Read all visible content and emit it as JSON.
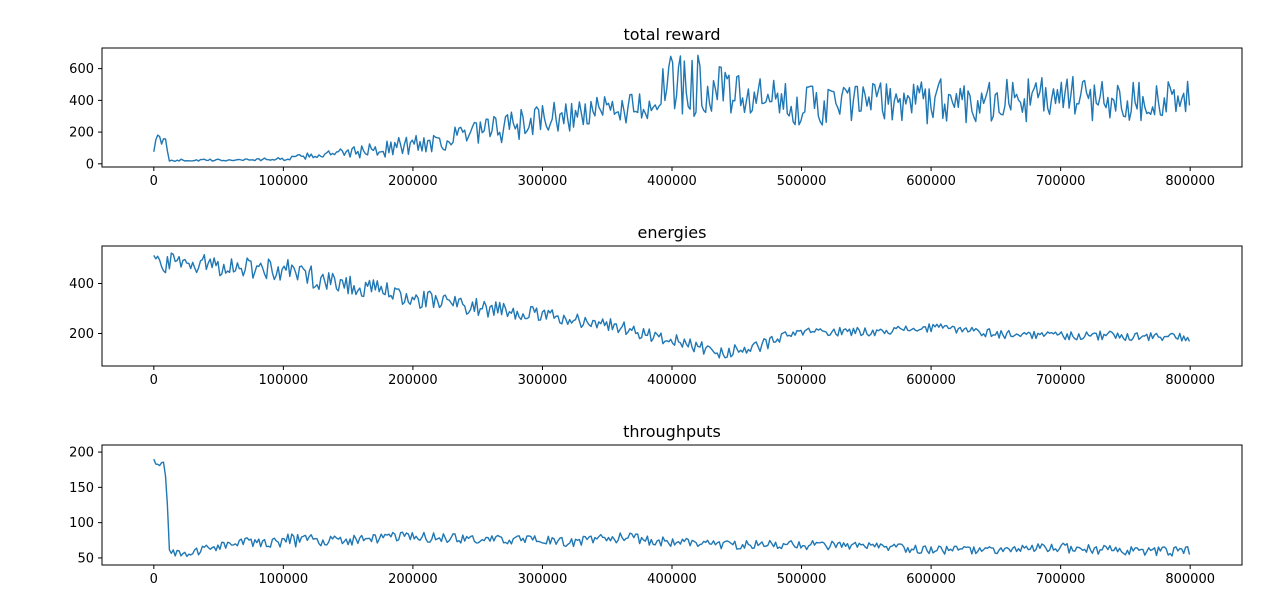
{
  "chart_data": [
    {
      "type": "line",
      "title": "total reward",
      "xlabel": "",
      "ylabel": "",
      "xlim": [
        -40000,
        840000
      ],
      "ylim": [
        -20,
        730
      ],
      "x_ticks": [
        0,
        100000,
        200000,
        300000,
        400000,
        500000,
        600000,
        700000,
        800000
      ],
      "x_tick_labels": [
        "0",
        "100000",
        "200000",
        "300000",
        "400000",
        "500000",
        "600000",
        "700000",
        "800000"
      ],
      "y_ticks": [
        0,
        200,
        400,
        600
      ],
      "y_tick_labels": [
        "0",
        "200",
        "400",
        "600"
      ],
      "grid": false,
      "color": "#1f77b4",
      "series": [
        {
          "x": [
            0,
            5000,
            10000,
            11000,
            50000,
            100000,
            120000,
            150000,
            200000,
            250000,
            300000,
            350000,
            380000,
            400000,
            420000,
            450000,
            500000,
            520000,
            550000,
            600000,
            650000,
            700000,
            750000,
            800000
          ],
          "low": [
            70,
            80,
            60,
            15,
            15,
            20,
            30,
            35,
            45,
            90,
            170,
            230,
            260,
            290,
            290,
            280,
            240,
            230,
            250,
            250,
            250,
            255,
            260,
            260
          ],
          "high": [
            180,
            190,
            170,
            30,
            30,
            40,
            70,
            100,
            190,
            280,
            380,
            430,
            480,
            690,
            720,
            560,
            500,
            500,
            520,
            540,
            540,
            560,
            540,
            520
          ]
        }
      ]
    },
    {
      "type": "line",
      "title": "energies",
      "xlabel": "",
      "ylabel": "",
      "xlim": [
        -40000,
        840000
      ],
      "ylim": [
        70,
        550
      ],
      "x_ticks": [
        0,
        100000,
        200000,
        300000,
        400000,
        500000,
        600000,
        700000,
        800000
      ],
      "x_tick_labels": [
        "0",
        "100000",
        "200000",
        "300000",
        "400000",
        "500000",
        "600000",
        "700000",
        "800000"
      ],
      "y_ticks": [
        200,
        400
      ],
      "y_tick_labels": [
        "200",
        "400"
      ],
      "grid": false,
      "color": "#1f77b4",
      "series": [
        {
          "x": [
            0,
            50000,
            100000,
            150000,
            200000,
            250000,
            300000,
            350000,
            400000,
            440000,
            470000,
            500000,
            550000,
            600000,
            630000,
            650000,
            700000,
            750000,
            800000
          ],
          "low": [
            440,
            430,
            405,
            350,
            300,
            270,
            245,
            210,
            145,
            95,
            130,
            185,
            190,
            200,
            195,
            180,
            175,
            170,
            165
          ],
          "high": [
            525,
            515,
            500,
            440,
            380,
            345,
            300,
            265,
            200,
            145,
            180,
            225,
            225,
            240,
            235,
            215,
            210,
            210,
            200
          ]
        }
      ]
    },
    {
      "type": "line",
      "title": "throughputs",
      "xlabel": "",
      "ylabel": "",
      "xlim": [
        -40000,
        840000
      ],
      "ylim": [
        40,
        210
      ],
      "x_ticks": [
        0,
        100000,
        200000,
        300000,
        400000,
        500000,
        600000,
        700000,
        800000
      ],
      "x_tick_labels": [
        "0",
        "100000",
        "200000",
        "300000",
        "400000",
        "500000",
        "600000",
        "700000",
        "800000"
      ],
      "y_ticks": [
        50,
        100,
        150,
        200
      ],
      "y_tick_labels": [
        "50",
        "100",
        "150",
        "200"
      ],
      "grid": false,
      "color": "#1f77b4",
      "series": [
        {
          "x": [
            0,
            5000,
            10000,
            11000,
            30000,
            50000,
            100000,
            150000,
            200000,
            250000,
            300000,
            320000,
            350000,
            400000,
            450000,
            500000,
            550000,
            600000,
            650000,
            700000,
            750000,
            800000
          ],
          "low": [
            160,
            165,
            160,
            50,
            50,
            60,
            65,
            68,
            72,
            70,
            68,
            65,
            70,
            65,
            62,
            62,
            60,
            55,
            55,
            57,
            54,
            52
          ],
          "high": [
            200,
            198,
            195,
            62,
            62,
            75,
            85,
            82,
            88,
            82,
            82,
            78,
            88,
            80,
            75,
            75,
            72,
            68,
            66,
            72,
            66,
            66
          ]
        }
      ]
    }
  ]
}
